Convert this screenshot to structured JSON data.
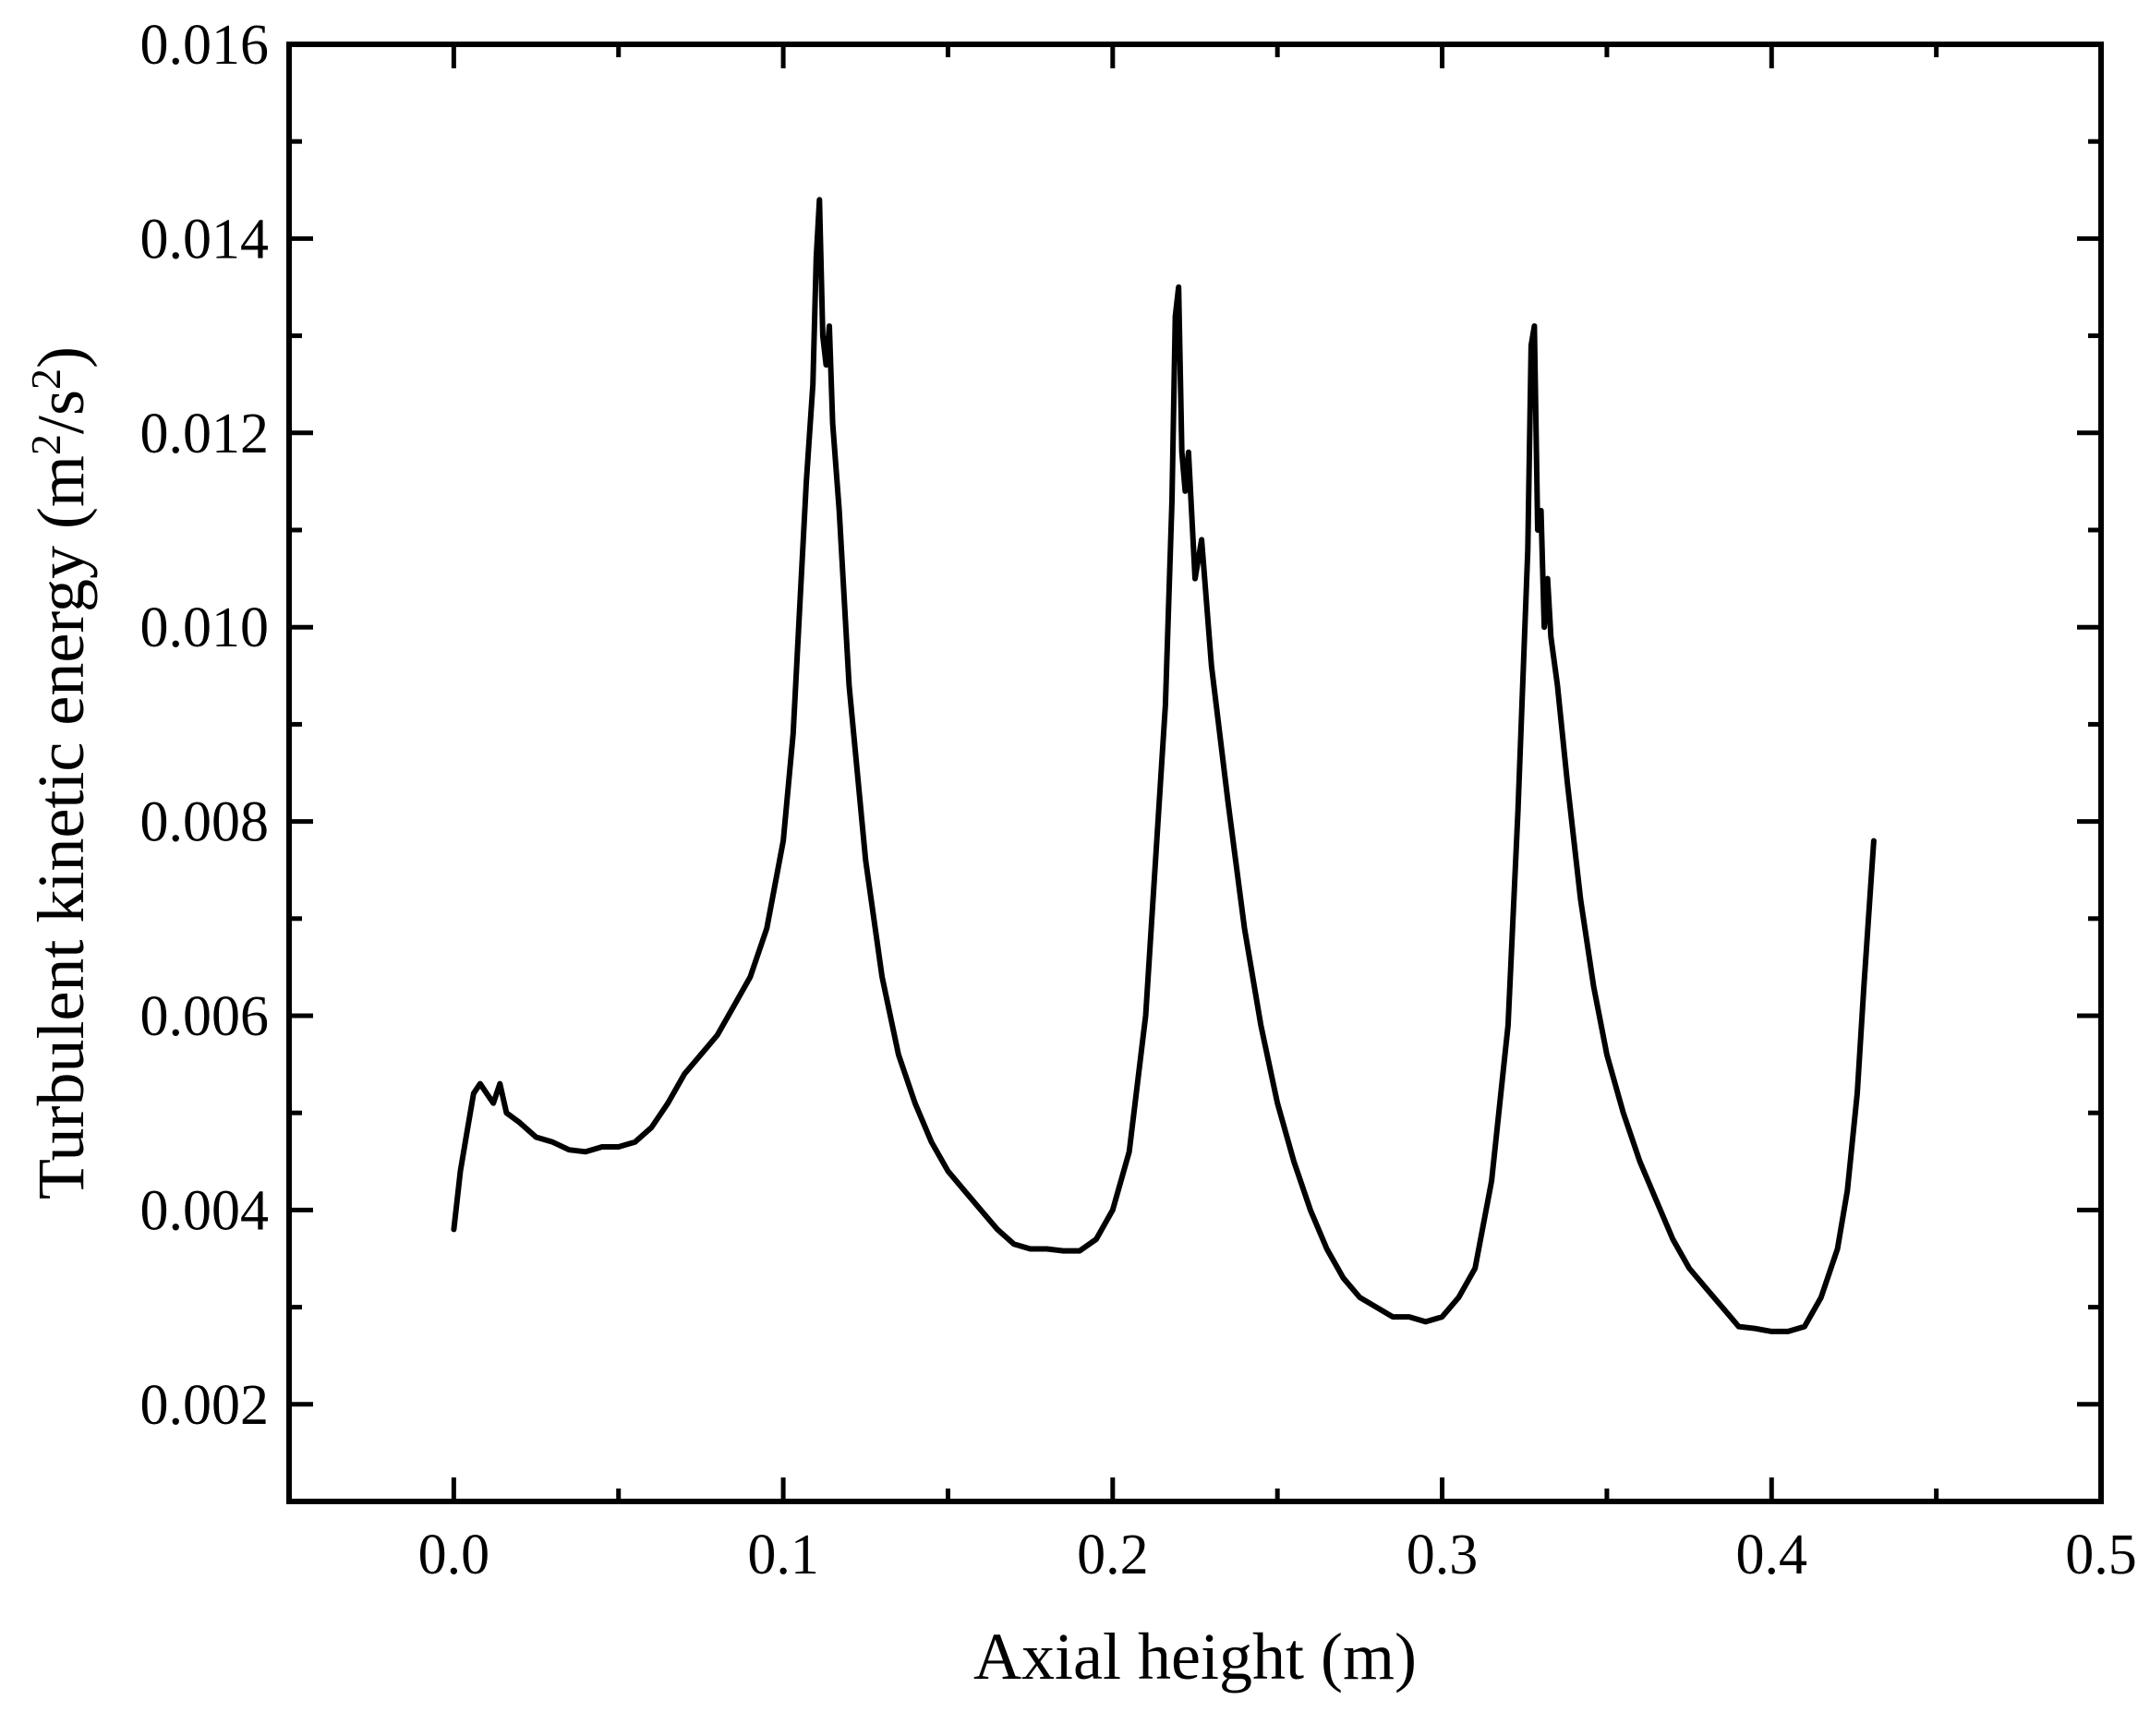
{
  "chart_data": {
    "type": "line",
    "title": "",
    "xlabel": "Axial height (m)",
    "ylabel_main": "Turbulent kinetic energy (m",
    "ylabel_sup1": "2",
    "ylabel_mid": "/s",
    "ylabel_sup2": "2",
    "ylabel_end": ")",
    "xlim": [
      -0.05,
      0.5
    ],
    "ylim": [
      0.001,
      0.016
    ],
    "x_ticks": [
      "0.0",
      "0.1",
      "0.2",
      "0.3",
      "0.4",
      "0.5"
    ],
    "y_ticks": [
      "0.002",
      "0.004",
      "0.006",
      "0.008",
      "0.010",
      "0.012",
      "0.014",
      "0.016"
    ],
    "grid": false,
    "series": [
      {
        "color": "#000000",
        "x": [
          0.0,
          0.002,
          0.004,
          0.006,
          0.008,
          0.01,
          0.012,
          0.014,
          0.016,
          0.02,
          0.025,
          0.03,
          0.035,
          0.04,
          0.045,
          0.05,
          0.055,
          0.06,
          0.065,
          0.07,
          0.075,
          0.08,
          0.085,
          0.09,
          0.095,
          0.1,
          0.103,
          0.105,
          0.107,
          0.109,
          0.11,
          0.111,
          0.112,
          0.113,
          0.114,
          0.115,
          0.117,
          0.12,
          0.125,
          0.13,
          0.135,
          0.14,
          0.145,
          0.15,
          0.155,
          0.16,
          0.165,
          0.17,
          0.175,
          0.18,
          0.185,
          0.19,
          0.195,
          0.2,
          0.205,
          0.21,
          0.213,
          0.216,
          0.218,
          0.219,
          0.22,
          0.221,
          0.222,
          0.223,
          0.225,
          0.227,
          0.23,
          0.235,
          0.24,
          0.245,
          0.25,
          0.255,
          0.26,
          0.265,
          0.27,
          0.275,
          0.28,
          0.285,
          0.29,
          0.295,
          0.3,
          0.305,
          0.31,
          0.315,
          0.32,
          0.323,
          0.326,
          0.327,
          0.328,
          0.329,
          0.33,
          0.331,
          0.332,
          0.333,
          0.335,
          0.338,
          0.342,
          0.346,
          0.35,
          0.355,
          0.36,
          0.365,
          0.37,
          0.375,
          0.38,
          0.385,
          0.39,
          0.395,
          0.4,
          0.405,
          0.41,
          0.415,
          0.42,
          0.423,
          0.426,
          0.428,
          0.43,
          0.431
        ],
        "y": [
          0.0038,
          0.0044,
          0.0048,
          0.0052,
          0.0053,
          0.0052,
          0.0051,
          0.0053,
          0.005,
          0.0049,
          0.00475,
          0.0047,
          0.00462,
          0.0046,
          0.00465,
          0.00465,
          0.0047,
          0.00485,
          0.0051,
          0.0054,
          0.0056,
          0.0058,
          0.0061,
          0.0064,
          0.0069,
          0.0078,
          0.0089,
          0.0102,
          0.0115,
          0.0125,
          0.0138,
          0.0144,
          0.013,
          0.0127,
          0.0131,
          0.0121,
          0.0112,
          0.0094,
          0.0076,
          0.0064,
          0.0056,
          0.0051,
          0.0047,
          0.0044,
          0.0042,
          0.004,
          0.0038,
          0.00365,
          0.0036,
          0.0036,
          0.00358,
          0.00358,
          0.0037,
          0.004,
          0.0046,
          0.006,
          0.0076,
          0.0092,
          0.0113,
          0.0132,
          0.0135,
          0.0118,
          0.0114,
          0.0118,
          0.0105,
          0.0109,
          0.0096,
          0.0082,
          0.0069,
          0.0059,
          0.0051,
          0.0045,
          0.004,
          0.0036,
          0.0033,
          0.0031,
          0.003,
          0.0029,
          0.0029,
          0.00285,
          0.0029,
          0.0031,
          0.0034,
          0.0043,
          0.0059,
          0.0081,
          0.0108,
          0.0129,
          0.0131,
          0.011,
          0.0112,
          0.01,
          0.0105,
          0.0099,
          0.0094,
          0.0084,
          0.0072,
          0.0063,
          0.0056,
          0.005,
          0.0045,
          0.0041,
          0.0037,
          0.0034,
          0.0032,
          0.003,
          0.0028,
          0.00278,
          0.00275,
          0.00275,
          0.0028,
          0.0031,
          0.0036,
          0.0042,
          0.0052,
          0.0063,
          0.0073,
          0.0078
        ]
      }
    ]
  }
}
